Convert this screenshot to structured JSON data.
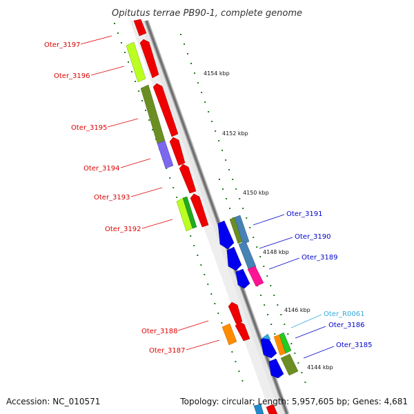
{
  "title": "Opitutus terrae PB90-1, complete genome",
  "footer": {
    "accession": "Accession: NC_010571",
    "summary": "Topology: circular; Length: 5,957,605 bp; Genes: 4,681"
  },
  "colors": {
    "backbone": "#777777",
    "forward_label": "#dd0000",
    "reverse_label": "#0000cc",
    "rna_label": "#33aadd",
    "ruler_tick": "#1a7a1a"
  },
  "ruler_labels": [
    "4154 kbp",
    "4152 kbp",
    "4150 kbp",
    "4148 kbp",
    "4146 kbp",
    "4144 kbp"
  ],
  "gene_labels": {
    "left": [
      "Oter_3197",
      "Oter_3196",
      "Oter_3195",
      "Oter_3194",
      "Oter_3193",
      "Oter_3192",
      "Oter_3188",
      "Oter_3187"
    ],
    "right": [
      "Oter_3191",
      "Oter_3190",
      "Oter_3189",
      "Oter_R0061",
      "Oter_3186",
      "Oter_3185"
    ]
  }
}
